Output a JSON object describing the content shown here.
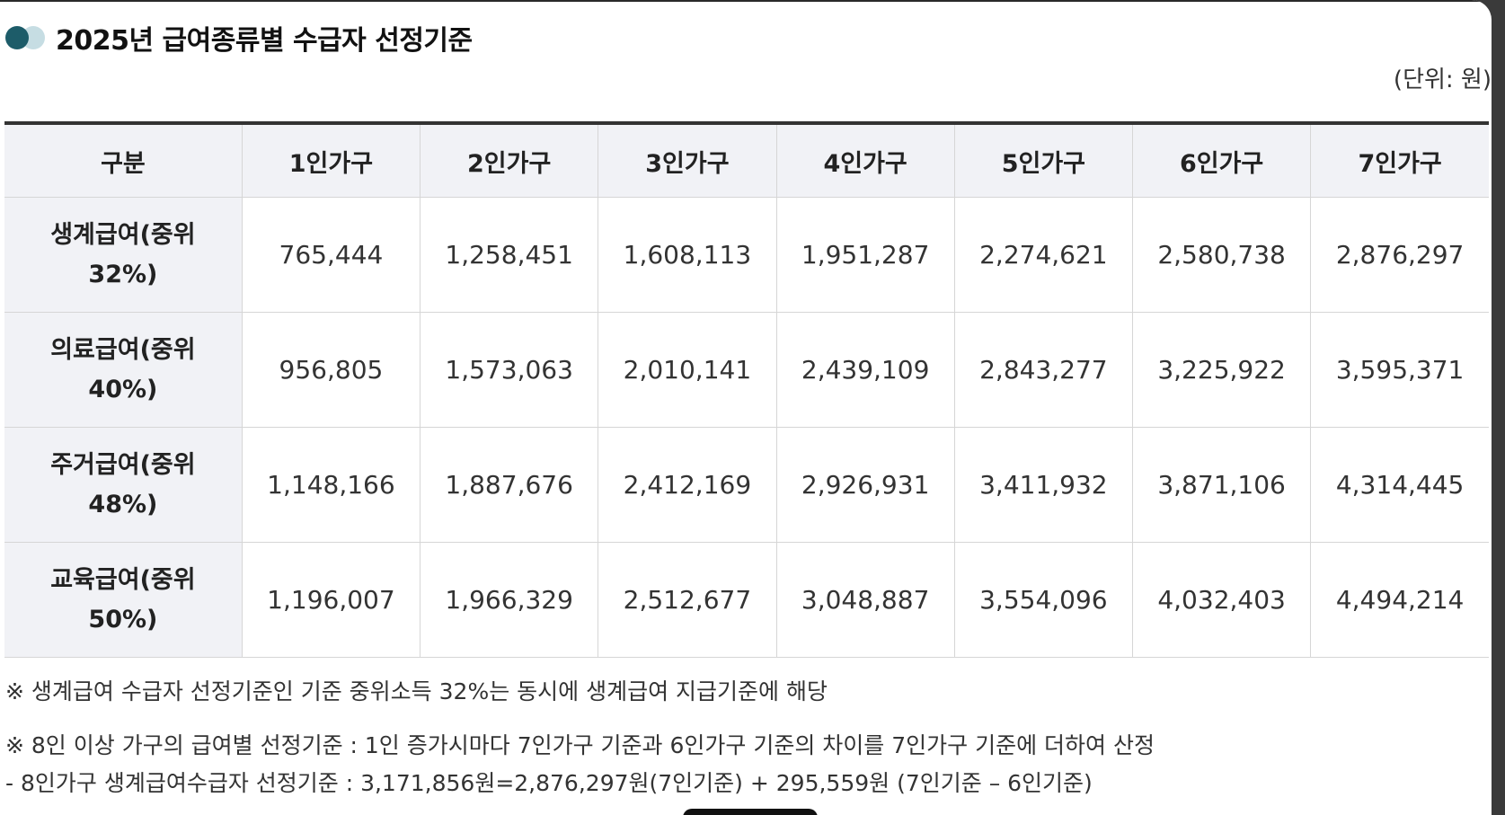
{
  "title": "2025년 급여종류별 수급자 선정기준",
  "unit": "(단위: 원)",
  "table": {
    "columns": [
      "구분",
      "1인가구",
      "2인가구",
      "3인가구",
      "4인가구",
      "5인가구",
      "6인가구",
      "7인가구"
    ],
    "rows": [
      {
        "label": "생계급여(중위 32%)",
        "values": [
          "765,444",
          "1,258,451",
          "1,608,113",
          "1,951,287",
          "2,274,621",
          "2,580,738",
          "2,876,297"
        ]
      },
      {
        "label": "의료급여(중위 40%)",
        "values": [
          "956,805",
          "1,573,063",
          "2,010,141",
          "2,439,109",
          "2,843,277",
          "3,225,922",
          "3,595,371"
        ]
      },
      {
        "label": "주거급여(중위 48%)",
        "values": [
          "1,148,166",
          "1,887,676",
          "2,412,169",
          "2,926,931",
          "3,411,932",
          "3,871,106",
          "4,314,445"
        ]
      },
      {
        "label": "교육급여(중위 50%)",
        "values": [
          "1,196,007",
          "1,966,329",
          "2,512,677",
          "3,048,887",
          "3,554,096",
          "4,032,403",
          "4,494,214"
        ]
      }
    ]
  },
  "notes": [
    "※ 생계급여 수급자 선정기준인 기준 중위소득 32%는 동시에 생계급여 지급기준에 해당",
    "※ 8인 이상 가구의 급여별 선정기준 : 1인 증가시마다 7인가구 기준과 6인가구 기준의 차이를 7인가구 기준에 더하여 산정",
    "- 8인가구 생계급여수급자 선정기준 : 3,171,856원=2,876,297원(7인기준) + 295,559원 (7인기준 – 6인기준)"
  ],
  "colors": {
    "accent_dark": "#1d5c69",
    "accent_light": "#c6dde3",
    "header_bg": "#f1f2f6"
  }
}
